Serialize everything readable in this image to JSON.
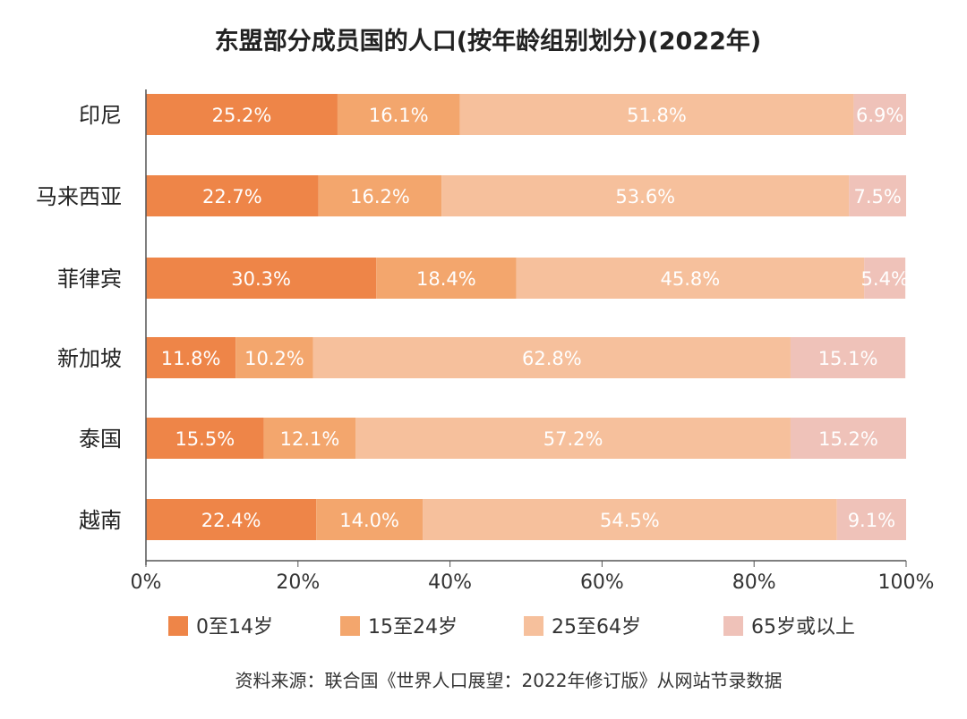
{
  "chart_data": {
    "type": "bar",
    "stacked": true,
    "orientation": "horizontal",
    "title": "东盟部分成员国的人口(按年龄组别划分)(2022年)",
    "categories": [
      "印尼",
      "马来西亚",
      "菲律宾",
      "新加坡",
      "泰国",
      "越南"
    ],
    "series": [
      {
        "name": "0至14岁",
        "color": "#ee8548",
        "values": [
          25.2,
          22.7,
          30.3,
          11.8,
          15.5,
          22.4
        ]
      },
      {
        "name": "15至24岁",
        "color": "#f3a66d",
        "values": [
          16.1,
          16.2,
          18.4,
          10.2,
          12.1,
          14.0
        ]
      },
      {
        "name": "25至64岁",
        "color": "#f6c09c",
        "values": [
          51.8,
          53.6,
          45.8,
          62.8,
          57.2,
          54.5
        ]
      },
      {
        "name": "65岁或以上",
        "color": "#efc2b9",
        "values": [
          6.9,
          7.5,
          5.4,
          15.1,
          15.2,
          9.1
        ]
      }
    ],
    "xlim": [
      0,
      100
    ],
    "xticks": [
      "0%",
      "20%",
      "40%",
      "60%",
      "80%",
      "100%"
    ],
    "legend_position": "bottom",
    "source": "资料来源：联合国《世界人口展望：2022年修订版》从网站节录数据"
  }
}
